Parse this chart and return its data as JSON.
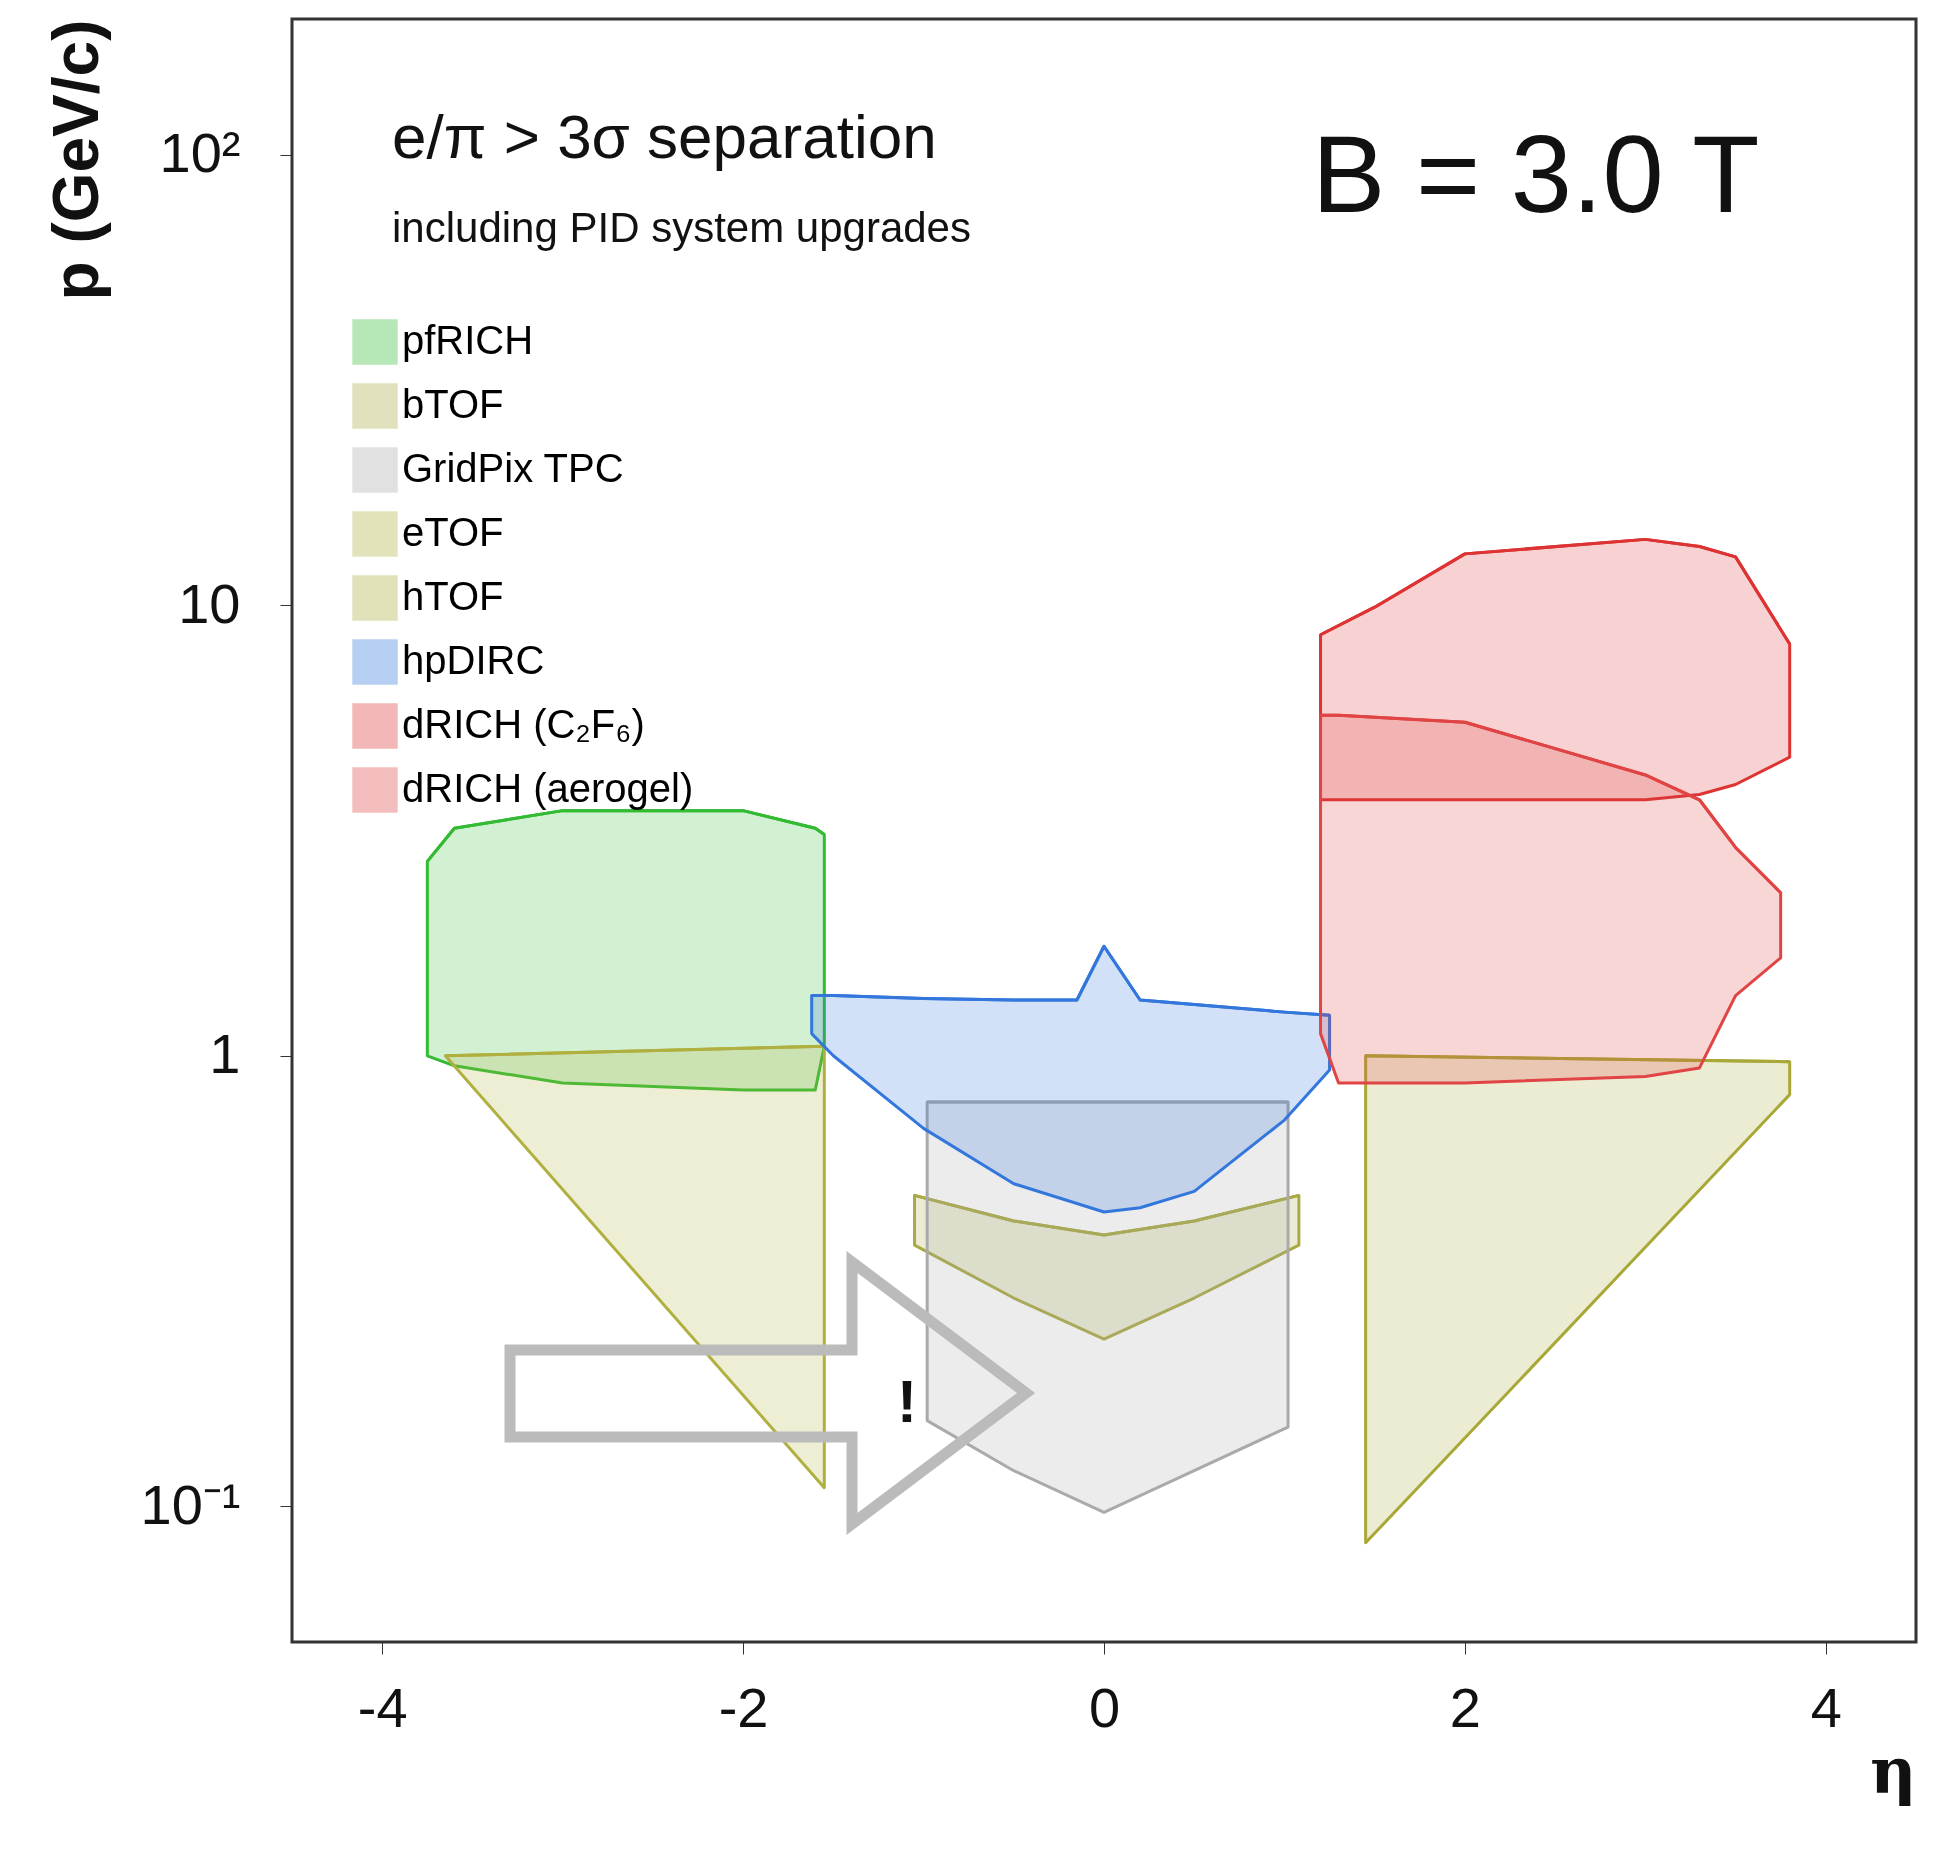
{
  "chart_data": {
    "type": "line",
    "annotations": [
      "e/π > 3σ separation",
      "including PID system upgrades",
      "B = 3.0 T",
      "!"
    ],
    "xlabel": "η",
    "ylabel": "p (GeV/c)",
    "xlim": [
      -4.5,
      4.5
    ],
    "xticks": [
      -4,
      -2,
      0,
      2,
      4
    ],
    "ylim": [
      0.05,
      200
    ],
    "yticks": [
      {
        "value": 0.1,
        "label": "10⁻¹"
      },
      1,
      10,
      {
        "value": 100,
        "label": "10²"
      }
    ],
    "log": "y",
    "grid": false,
    "legend": "top left",
    "series": [
      {
        "name": "pfRICH",
        "color": "#33bb33",
        "x": [
          -3.75,
          -3.6,
          -3.0,
          -2.0,
          -1.6,
          -1.55
        ],
        "values": [
          2.7,
          3.2,
          3.5,
          3.5,
          3.2,
          3.1
        ],
        "upper": [
          2.7,
          3.2,
          3.5,
          3.5,
          3.2,
          3.1
        ],
        "lower": [
          1.0,
          0.95,
          0.87,
          0.84,
          0.84,
          1.05
        ]
      },
      {
        "name": "bTOF",
        "color": "#aaaa44",
        "x": [
          -1.05,
          -0.5,
          0,
          0.5,
          1.08
        ],
        "values": [
          0.49,
          0.43,
          0.4,
          0.43,
          0.49
        ],
        "upper": [
          0.49,
          0.43,
          0.4,
          0.43,
          0.49
        ],
        "lower": [
          0.38,
          0.29,
          0.235,
          0.29,
          0.38
        ]
      },
      {
        "name": "GridPix TPC",
        "color": "#aaaaaa",
        "x": [
          -0.98,
          -0.5,
          0,
          0.5,
          1.02
        ],
        "values": [
          0.79,
          0.79,
          0.79,
          0.79,
          0.79
        ],
        "upper": [
          0.79,
          0.79,
          0.79,
          0.79,
          0.79
        ],
        "lower": [
          0.155,
          0.12,
          0.097,
          0.12,
          0.15
        ]
      },
      {
        "name": "eTOF",
        "color": "#b0b040",
        "x": [
          -3.65,
          -1.55
        ],
        "values": [
          1.0,
          1.05
        ],
        "upper": [
          1.0,
          1.05
        ],
        "lower": [
          1.0,
          0.11
        ]
      },
      {
        "name": "hTOF",
        "color": "#a8a838",
        "x": [
          1.45,
          3.8
        ],
        "values": [
          1.0,
          0.97
        ],
        "upper": [
          1.0,
          0.97
        ],
        "lower": [
          0.083,
          0.82
        ]
      },
      {
        "name": "hpDIRC",
        "color": "#3377dd",
        "x": [
          -1.62,
          -1.5,
          -1.0,
          -0.5,
          -0.15,
          0,
          0.2,
          0.5,
          1.0,
          1.25
        ],
        "values": [
          1.36,
          1.36,
          1.34,
          1.33,
          1.33,
          1.75,
          1.33,
          1.3,
          1.25,
          1.23
        ],
        "upper": [
          1.36,
          1.36,
          1.34,
          1.33,
          1.33,
          1.75,
          1.33,
          1.3,
          1.25,
          1.23
        ],
        "lower": [
          1.12,
          1.0,
          0.69,
          0.52,
          0.47,
          0.45,
          0.46,
          0.5,
          0.72,
          0.93
        ]
      },
      {
        "name": "dRICH (C₂F₆)",
        "color": "#dd3333",
        "x": [
          1.2,
          1.5,
          2.0,
          3.0,
          3.3,
          3.5,
          3.8
        ],
        "values": [
          8.6,
          9.9,
          13,
          14,
          13.5,
          12.8,
          8.2
        ],
        "upper": [
          8.6,
          9.9,
          13,
          14,
          13.5,
          12.8,
          8.2
        ],
        "lower": [
          3.7,
          3.7,
          3.7,
          3.7,
          3.8,
          4.0,
          4.6
        ]
      },
      {
        "name": "dRICH (aerogel)",
        "color": "#e04444",
        "x": [
          1.2,
          1.3,
          2.0,
          3.0,
          3.3,
          3.5,
          3.75
        ],
        "values": [
          5.7,
          5.7,
          5.5,
          4.2,
          3.7,
          2.9,
          2.3
        ],
        "upper": [
          5.7,
          5.7,
          5.5,
          4.2,
          3.7,
          2.9,
          2.3
        ],
        "lower": [
          1.12,
          0.87,
          0.87,
          0.9,
          0.94,
          1.36,
          1.65
        ]
      }
    ]
  }
}
